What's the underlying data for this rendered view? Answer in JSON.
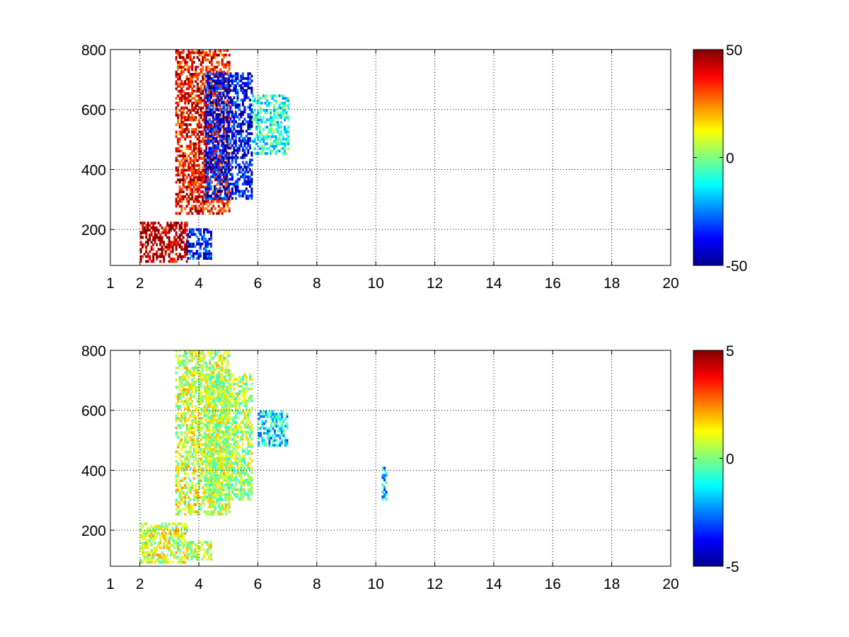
{
  "chart_data": [
    {
      "type": "heatmap",
      "title": "",
      "xlabel": "",
      "ylabel": "",
      "xlim": [
        1,
        20
      ],
      "ylim": [
        80,
        800
      ],
      "x_ticks": [
        1,
        2,
        4,
        6,
        8,
        10,
        12,
        14,
        16,
        18,
        20
      ],
      "x_tick_labels": [
        "1",
        "2",
        "4",
        "6",
        "8",
        "10",
        "12",
        "14",
        "16",
        "18",
        "20"
      ],
      "y_ticks": [
        200,
        400,
        600,
        800
      ],
      "y_tick_labels": [
        "200",
        "400",
        "600",
        "800"
      ],
      "grid": true,
      "colormap": "jet",
      "clim": [
        -50,
        50
      ],
      "colorbar_ticks": [
        50,
        0,
        -50
      ],
      "colorbar_tick_labels": [
        "50",
        "0",
        "-50"
      ],
      "features": [
        {
          "x": [
            2.0,
            3.6
          ],
          "y": [
            90,
            220
          ],
          "value": 45
        },
        {
          "x": [
            3.6,
            4.4
          ],
          "y": [
            100,
            200
          ],
          "value": -35
        },
        {
          "x": [
            3.2,
            5.0
          ],
          "y": [
            250,
            800
          ],
          "value": 38
        },
        {
          "x": [
            4.2,
            5.8
          ],
          "y": [
            300,
            720
          ],
          "value": -38
        },
        {
          "x": [
            5.8,
            7.0
          ],
          "y": [
            450,
            650
          ],
          "value": -10
        }
      ]
    },
    {
      "type": "heatmap",
      "title": "",
      "xlabel": "",
      "ylabel": "",
      "xlim": [
        1,
        20
      ],
      "ylim": [
        80,
        800
      ],
      "x_ticks": [
        1,
        2,
        4,
        6,
        8,
        10,
        12,
        14,
        16,
        18,
        20
      ],
      "x_tick_labels": [
        "1",
        "2",
        "4",
        "6",
        "8",
        "10",
        "12",
        "14",
        "16",
        "18",
        "20"
      ],
      "y_ticks": [
        200,
        400,
        600,
        800
      ],
      "y_tick_labels": [
        "200",
        "400",
        "600",
        "800"
      ],
      "grid": true,
      "colormap": "jet",
      "clim": [
        -5,
        5
      ],
      "colorbar_ticks": [
        5,
        0,
        -5
      ],
      "colorbar_tick_labels": [
        "5",
        "0",
        "-5"
      ],
      "features": [
        {
          "x": [
            2.0,
            3.6
          ],
          "y": [
            90,
            220
          ],
          "value": 0.8
        },
        {
          "x": [
            3.6,
            4.4
          ],
          "y": [
            100,
            160
          ],
          "value": 0.5
        },
        {
          "x": [
            3.2,
            5.0
          ],
          "y": [
            250,
            800
          ],
          "value": 0.8
        },
        {
          "x": [
            4.2,
            5.8
          ],
          "y": [
            300,
            720
          ],
          "value": 0.4
        },
        {
          "x": [
            6.0,
            7.0
          ],
          "y": [
            480,
            600
          ],
          "value": -1.5
        },
        {
          "x": [
            10.2,
            10.35
          ],
          "y": [
            300,
            410
          ],
          "value": -2
        }
      ]
    }
  ]
}
